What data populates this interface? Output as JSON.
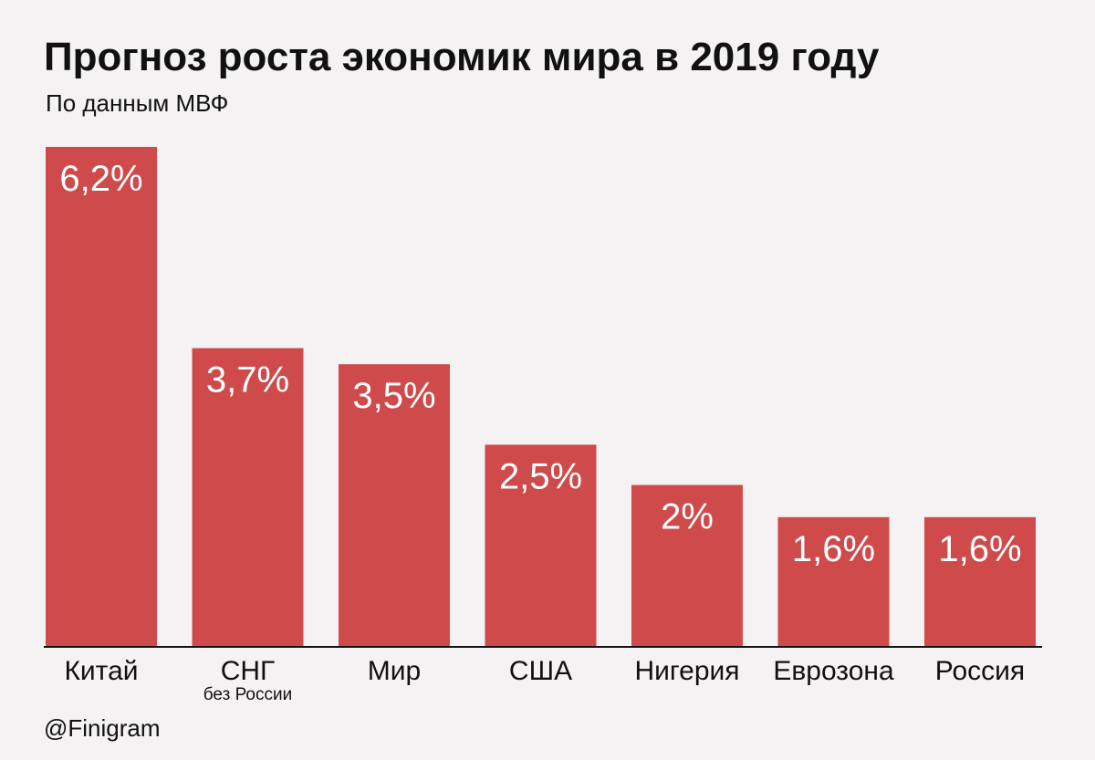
{
  "chart_data": {
    "type": "bar",
    "title": "Прогноз роста экономик мира в 2019 году",
    "subtitle": "По данным МВФ",
    "categories": [
      "Китай",
      "СНГ",
      "Мир",
      "США",
      "Нигерия",
      "Еврозона",
      "Россия"
    ],
    "category_sublabels": [
      "",
      "без России",
      "",
      "",
      "",
      "",
      ""
    ],
    "values": [
      6.2,
      3.7,
      3.5,
      2.5,
      2.0,
      1.6,
      1.6
    ],
    "value_labels": [
      "6,2%",
      "3,7%",
      "3,5%",
      "2,5%",
      "2%",
      "1,6%",
      "1,6%"
    ],
    "xlabel": "",
    "ylabel": "",
    "ylim": [
      0,
      6.2
    ],
    "grid": false,
    "legend": "none",
    "bar_color": "#cf4b4b",
    "label_color": "#ffffff"
  },
  "source": "@Finigram"
}
